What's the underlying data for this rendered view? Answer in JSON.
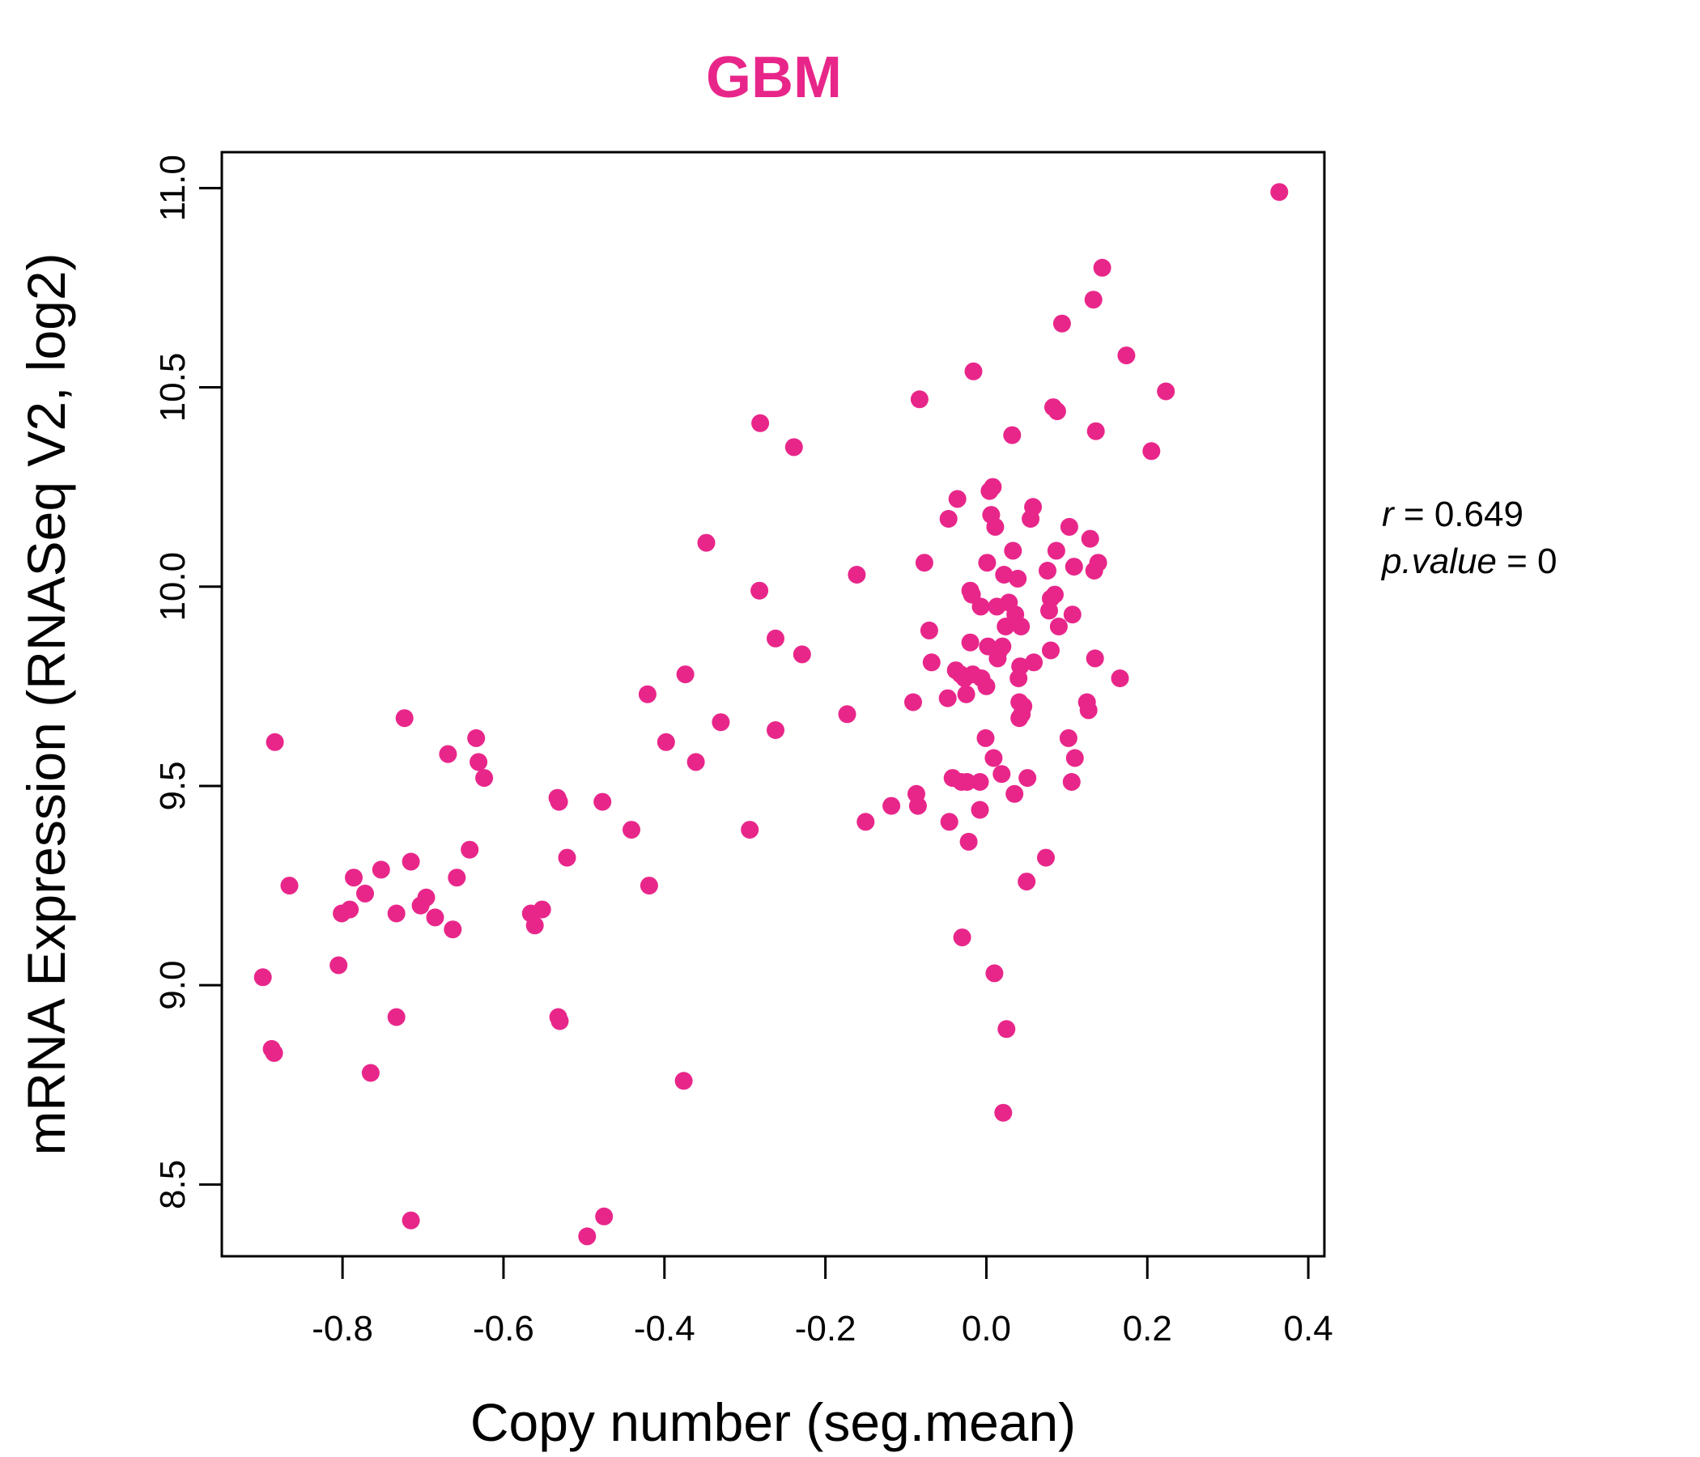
{
  "colors": {
    "accent": "#E8268A",
    "axis": "#000000"
  },
  "stats": {
    "r_label": "r",
    "r_value": "0.649",
    "p_label": "p.value",
    "p_value": "0"
  },
  "chart_data": {
    "type": "scatter",
    "title": "GBM",
    "xlabel": "Copy number (seg.mean)",
    "ylabel": "mRNA Expression (RNASeq V2, log2)",
    "xlim": [
      -0.95,
      0.42
    ],
    "ylim": [
      8.32,
      11.09
    ],
    "xticks": [
      -0.8,
      -0.6,
      -0.4,
      -0.2,
      0.0,
      0.2,
      0.4
    ],
    "xtick_labels": [
      "-0.8",
      "-0.6",
      "-0.4",
      "-0.2",
      "0.0",
      "0.2",
      "0.4"
    ],
    "yticks": [
      8.5,
      9.0,
      9.5,
      10.0,
      10.5,
      11.0
    ],
    "ytick_labels": [
      "8.5",
      "9.0",
      "9.5",
      "10.0",
      "10.5",
      "11.0"
    ],
    "grid": false,
    "points": [
      [
        -0.899,
        9.02
      ],
      [
        -0.888,
        8.84
      ],
      [
        -0.885,
        8.83
      ],
      [
        -0.884,
        9.61
      ],
      [
        -0.866,
        9.25
      ],
      [
        -0.805,
        9.05
      ],
      [
        -0.801,
        9.18
      ],
      [
        -0.791,
        9.19
      ],
      [
        -0.786,
        9.27
      ],
      [
        -0.772,
        9.23
      ],
      [
        -0.765,
        8.78
      ],
      [
        -0.752,
        9.29
      ],
      [
        -0.733,
        9.18
      ],
      [
        -0.733,
        8.92
      ],
      [
        -0.723,
        9.67
      ],
      [
        -0.715,
        9.31
      ],
      [
        -0.715,
        8.41
      ],
      [
        -0.703,
        9.2
      ],
      [
        -0.696,
        9.22
      ],
      [
        -0.685,
        9.17
      ],
      [
        -0.669,
        9.58
      ],
      [
        -0.663,
        9.14
      ],
      [
        -0.658,
        9.27
      ],
      [
        -0.642,
        9.34
      ],
      [
        -0.634,
        9.62
      ],
      [
        -0.631,
        9.56
      ],
      [
        -0.624,
        9.52
      ],
      [
        -0.566,
        9.18
      ],
      [
        -0.561,
        9.15
      ],
      [
        -0.552,
        9.19
      ],
      [
        -0.533,
        9.47
      ],
      [
        -0.532,
        8.92
      ],
      [
        -0.531,
        9.46
      ],
      [
        -0.53,
        8.91
      ],
      [
        -0.521,
        9.32
      ],
      [
        -0.496,
        8.37
      ],
      [
        -0.475,
        8.42
      ],
      [
        -0.477,
        9.46
      ],
      [
        -0.441,
        9.39
      ],
      [
        -0.421,
        9.73
      ],
      [
        -0.419,
        9.25
      ],
      [
        -0.398,
        9.61
      ],
      [
        -0.376,
        8.76
      ],
      [
        -0.374,
        9.78
      ],
      [
        -0.361,
        9.56
      ],
      [
        -0.348,
        10.11
      ],
      [
        -0.33,
        9.66
      ],
      [
        -0.294,
        9.39
      ],
      [
        -0.282,
        9.99
      ],
      [
        -0.281,
        10.41
      ],
      [
        -0.262,
        9.87
      ],
      [
        -0.262,
        9.64
      ],
      [
        -0.239,
        10.35
      ],
      [
        -0.229,
        9.83
      ],
      [
        -0.173,
        9.68
      ],
      [
        -0.161,
        10.03
      ],
      [
        -0.15,
        9.41
      ],
      [
        -0.118,
        9.45
      ],
      [
        -0.091,
        9.71
      ],
      [
        -0.087,
        9.48
      ],
      [
        -0.085,
        9.45
      ],
      [
        -0.083,
        10.47
      ],
      [
        -0.077,
        10.06
      ],
      [
        -0.071,
        9.89
      ],
      [
        -0.068,
        9.81
      ],
      [
        -0.048,
        9.72
      ],
      [
        -0.047,
        10.17
      ],
      [
        -0.046,
        9.41
      ],
      [
        -0.042,
        9.52
      ],
      [
        -0.038,
        9.79
      ],
      [
        -0.036,
        10.22
      ],
      [
        -0.032,
        9.78
      ],
      [
        -0.031,
        9.51
      ],
      [
        -0.03,
        9.12
      ],
      [
        -0.027,
        9.77
      ],
      [
        -0.025,
        9.73
      ],
      [
        -0.024,
        9.51
      ],
      [
        -0.022,
        9.36
      ],
      [
        -0.02,
        9.86
      ],
      [
        -0.02,
        9.99
      ],
      [
        -0.018,
        9.98
      ],
      [
        -0.017,
        9.78
      ],
      [
        -0.016,
        10.54
      ],
      [
        -0.008,
        9.51
      ],
      [
        -0.008,
        9.44
      ],
      [
        -0.007,
        9.95
      ],
      [
        -0.006,
        9.77
      ],
      [
        -0.001,
        9.62
      ],
      [
        0.0,
        9.75
      ],
      [
        0.001,
        10.06
      ],
      [
        0.002,
        9.85
      ],
      [
        0.004,
        10.24
      ],
      [
        0.006,
        10.18
      ],
      [
        0.008,
        10.25
      ],
      [
        0.009,
        9.57
      ],
      [
        0.01,
        9.03
      ],
      [
        0.011,
        10.15
      ],
      [
        0.013,
        9.95
      ],
      [
        0.014,
        9.82
      ],
      [
        0.016,
        9.84
      ],
      [
        0.019,
        9.53
      ],
      [
        0.02,
        9.85
      ],
      [
        0.021,
        8.68
      ],
      [
        0.022,
        10.03
      ],
      [
        0.024,
        9.9
      ],
      [
        0.025,
        8.89
      ],
      [
        0.028,
        9.96
      ],
      [
        0.032,
        10.38
      ],
      [
        0.033,
        10.09
      ],
      [
        0.035,
        9.48
      ],
      [
        0.036,
        9.93
      ],
      [
        0.039,
        10.02
      ],
      [
        0.04,
        9.77
      ],
      [
        0.041,
        9.67
      ],
      [
        0.041,
        9.71
      ],
      [
        0.042,
        9.8
      ],
      [
        0.043,
        9.9
      ],
      [
        0.044,
        9.68
      ],
      [
        0.046,
        9.7
      ],
      [
        0.05,
        9.26
      ],
      [
        0.051,
        9.52
      ],
      [
        0.055,
        10.17
      ],
      [
        0.058,
        10.2
      ],
      [
        0.059,
        9.81
      ],
      [
        0.074,
        9.32
      ],
      [
        0.076,
        10.04
      ],
      [
        0.078,
        9.94
      ],
      [
        0.08,
        9.84
      ],
      [
        0.08,
        9.97
      ],
      [
        0.083,
        10.45
      ],
      [
        0.085,
        9.98
      ],
      [
        0.087,
        10.09
      ],
      [
        0.088,
        10.44
      ],
      [
        0.09,
        9.9
      ],
      [
        0.094,
        10.66
      ],
      [
        0.102,
        9.62
      ],
      [
        0.103,
        10.15
      ],
      [
        0.106,
        9.51
      ],
      [
        0.107,
        9.93
      ],
      [
        0.109,
        10.05
      ],
      [
        0.11,
        9.57
      ],
      [
        0.125,
        9.71
      ],
      [
        0.127,
        9.69
      ],
      [
        0.129,
        10.12
      ],
      [
        0.133,
        10.72
      ],
      [
        0.134,
        10.04
      ],
      [
        0.135,
        9.82
      ],
      [
        0.136,
        10.39
      ],
      [
        0.139,
        10.06
      ],
      [
        0.144,
        10.8
      ],
      [
        0.166,
        9.77
      ],
      [
        0.174,
        10.58
      ],
      [
        0.205,
        10.34
      ],
      [
        0.223,
        10.49
      ],
      [
        0.364,
        10.99
      ]
    ]
  }
}
